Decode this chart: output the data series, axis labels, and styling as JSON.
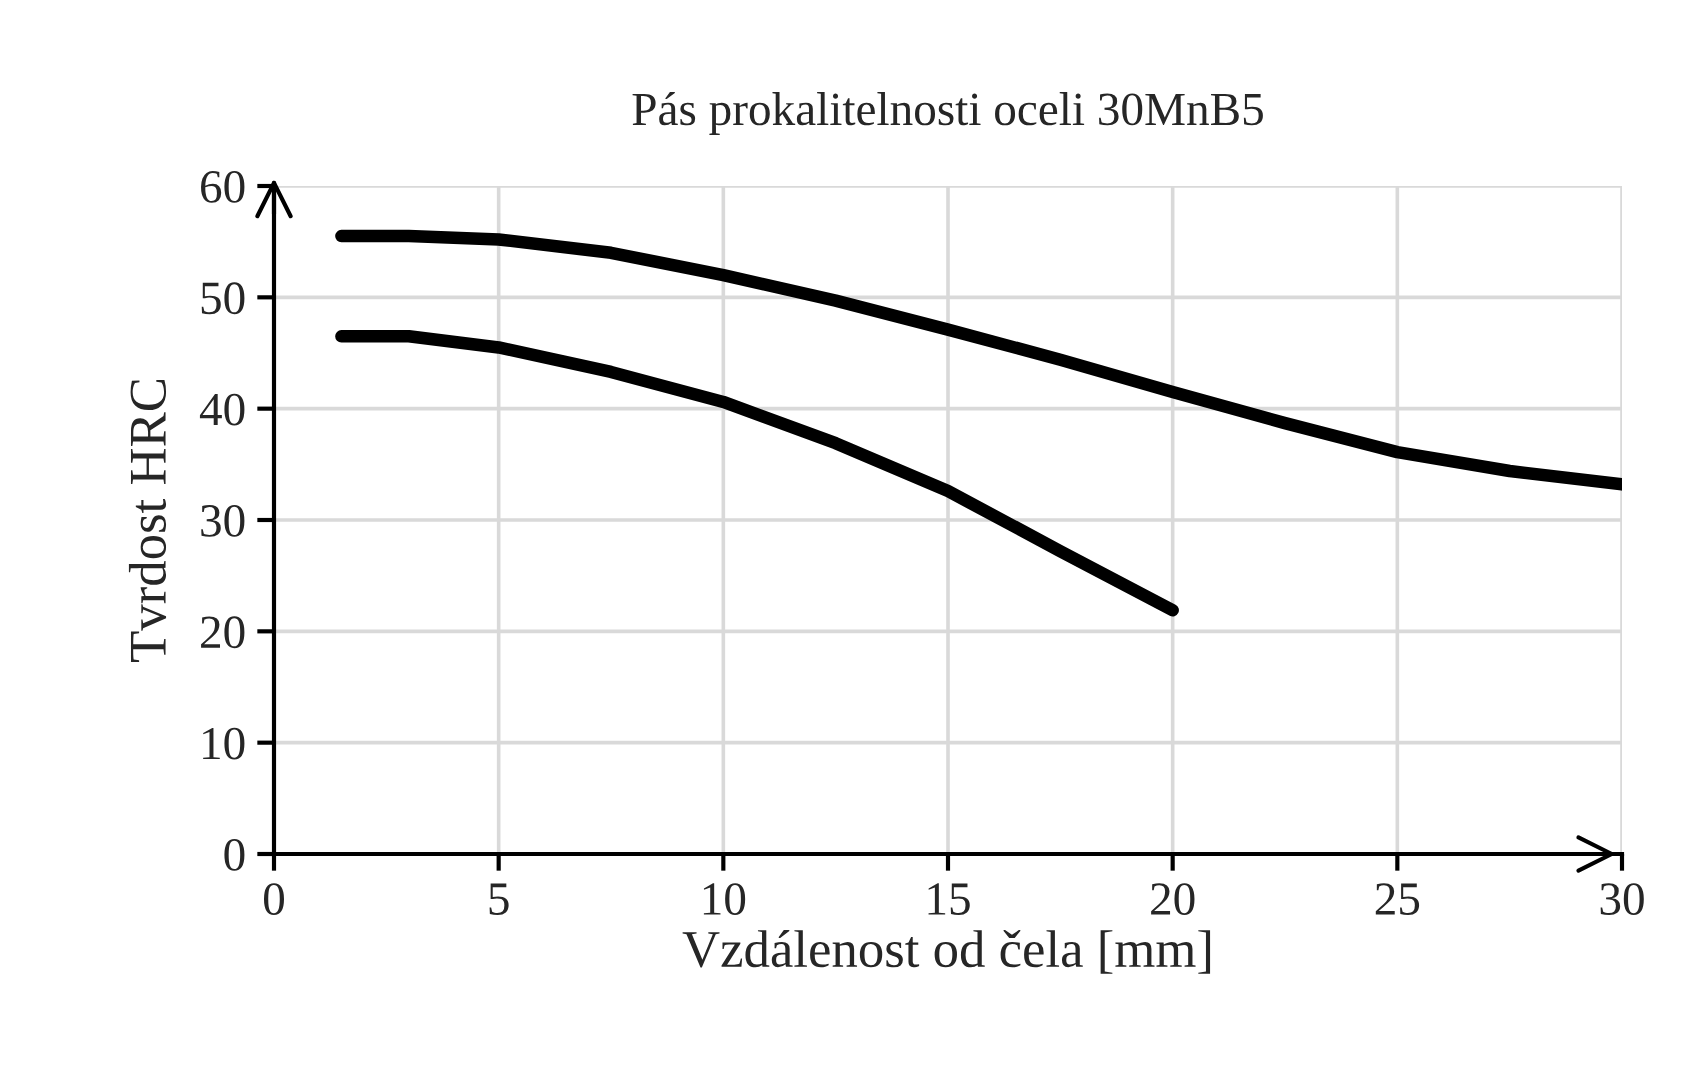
{
  "chart_data": {
    "type": "line",
    "title": "Pás prokalitelnosti oceli 30MnB5",
    "xlabel": "Vzdálenost od čela [mm]",
    "ylabel": "Tvrdost HRC",
    "xlim": [
      0,
      30
    ],
    "xticks": [
      0,
      5,
      10,
      15,
      20,
      25,
      30
    ],
    "ylim": [
      0,
      60
    ],
    "yticks": [
      0,
      10,
      20,
      30,
      40,
      50,
      60
    ],
    "grid": true,
    "series": [
      {
        "color": "#000000",
        "x": [
          1.5,
          3,
          5,
          7.5,
          10,
          12.5,
          15,
          17.5,
          20,
          22.5,
          25,
          27.5,
          30
        ],
        "values": [
          55.5,
          55.5,
          55.2,
          54.0,
          52.0,
          49.7,
          47.1,
          44.4,
          41.5,
          38.7,
          36.1,
          34.4,
          33.2
        ]
      },
      {
        "color": "#000000",
        "x": [
          1.5,
          3,
          5,
          7.5,
          10,
          12.5,
          15,
          17.5,
          20
        ],
        "values": [
          46.5,
          46.5,
          45.5,
          43.3,
          40.6,
          36.9,
          32.6,
          27.2,
          21.9
        ]
      }
    ]
  }
}
